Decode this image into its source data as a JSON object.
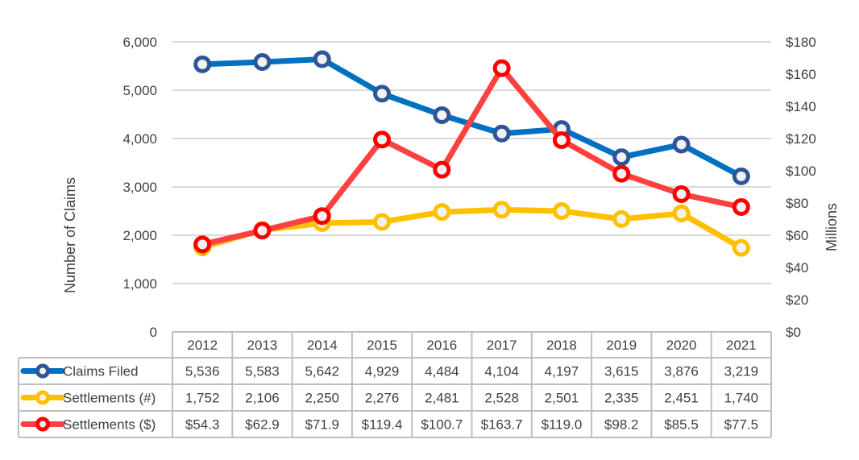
{
  "chart_data": {
    "type": "line",
    "categories": [
      "2012",
      "2013",
      "2014",
      "2015",
      "2016",
      "2017",
      "2018",
      "2019",
      "2020",
      "2021"
    ],
    "ylabel": "Number of Claims",
    "y2label": "Millions",
    "ylim": [
      0,
      6000
    ],
    "y2lim": [
      0,
      180
    ],
    "yticks": [
      "0",
      "1,000",
      "2,000",
      "3,000",
      "4,000",
      "5,000",
      "6,000"
    ],
    "y2ticks": [
      "$0",
      "$20",
      "$40",
      "$60",
      "$80",
      "$100",
      "$120",
      "$140",
      "$160",
      "$180"
    ],
    "grid": true,
    "legend": "data-table-below",
    "series": [
      {
        "name": "Claims Filed",
        "axis": "left",
        "color": "#0070C0",
        "marker_color": "#2F5597",
        "values": [
          5536,
          5583,
          5642,
          4929,
          4484,
          4104,
          4197,
          3615,
          3876,
          3219
        ],
        "labels": [
          "5,536",
          "5,583",
          "5,642",
          "4,929",
          "4,484",
          "4,104",
          "4,197",
          "3,615",
          "3,876",
          "3,219"
        ]
      },
      {
        "name": "Settlements (#)",
        "axis": "left",
        "color": "#FFC000",
        "marker_color": "#FFC000",
        "values": [
          1752,
          2106,
          2250,
          2276,
          2481,
          2528,
          2501,
          2335,
          2451,
          1740
        ],
        "labels": [
          "1,752",
          "2,106",
          "2,250",
          "2,276",
          "2,481",
          "2,528",
          "2,501",
          "2,335",
          "2,451",
          "1,740"
        ]
      },
      {
        "name": "Settlements ($)",
        "axis": "right",
        "color": "#FF4040",
        "marker_color": "#FF0000",
        "values": [
          54.3,
          62.9,
          71.9,
          119.4,
          100.7,
          163.7,
          119.0,
          98.2,
          85.5,
          77.5
        ],
        "labels": [
          "$54.3",
          "$62.9",
          "$71.9",
          "$119.4",
          "$100.7",
          "$163.7",
          "$119.0",
          "$98.2",
          "$85.5",
          "$77.5"
        ]
      }
    ]
  }
}
